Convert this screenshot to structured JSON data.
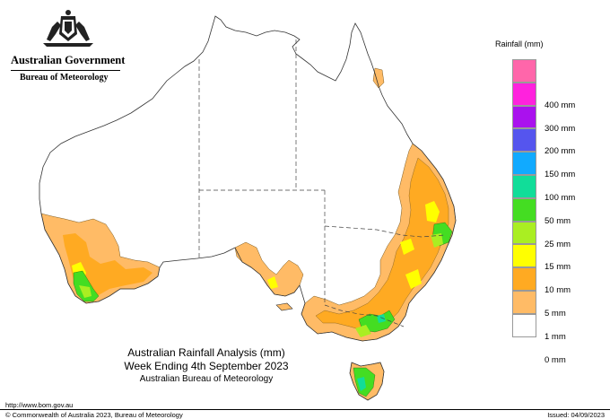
{
  "logo": {
    "government": "Australian Government",
    "bureau": "Bureau of Meteorology"
  },
  "legend": {
    "title": "Rainfall (mm)",
    "items": [
      {
        "label": "",
        "color": "#ff66aa"
      },
      {
        "label": "400 mm",
        "color": "#ff22dd"
      },
      {
        "label": "300 mm",
        "color": "#aa11ee"
      },
      {
        "label": "200 mm",
        "color": "#5555ee"
      },
      {
        "label": "150 mm",
        "color": "#11aaff"
      },
      {
        "label": "100 mm",
        "color": "#11dd99"
      },
      {
        "label": "50 mm",
        "color": "#44dd22"
      },
      {
        "label": "25 mm",
        "color": "#aaee22"
      },
      {
        "label": "15 mm",
        "color": "#ffff00"
      },
      {
        "label": "10 mm",
        "color": "#ffaa22"
      },
      {
        "label": "5 mm",
        "color": "#ffbb66"
      },
      {
        "label": "1 mm",
        "color": "#ffffff"
      },
      {
        "label": "0 mm",
        "color": ""
      }
    ]
  },
  "title": {
    "line1": "Australian Rainfall Analysis (mm)",
    "line2": "Week Ending 4th September 2023",
    "line3": "Australian Bureau of Meteorology"
  },
  "footer": {
    "url": "http://www.bom.gov.au",
    "copyright": "© Commonwealth of Australia 2023, Bureau of Meteorology",
    "issued": "Issued: 04/09/2023"
  },
  "colors": {
    "rain_1_5": "#ffbb66",
    "rain_5_10": "#ffaa22",
    "rain_10_15": "#ffff00",
    "rain_15_25": "#aaee22",
    "rain_25_50": "#44dd22",
    "rain_50_100": "#11dd99"
  }
}
